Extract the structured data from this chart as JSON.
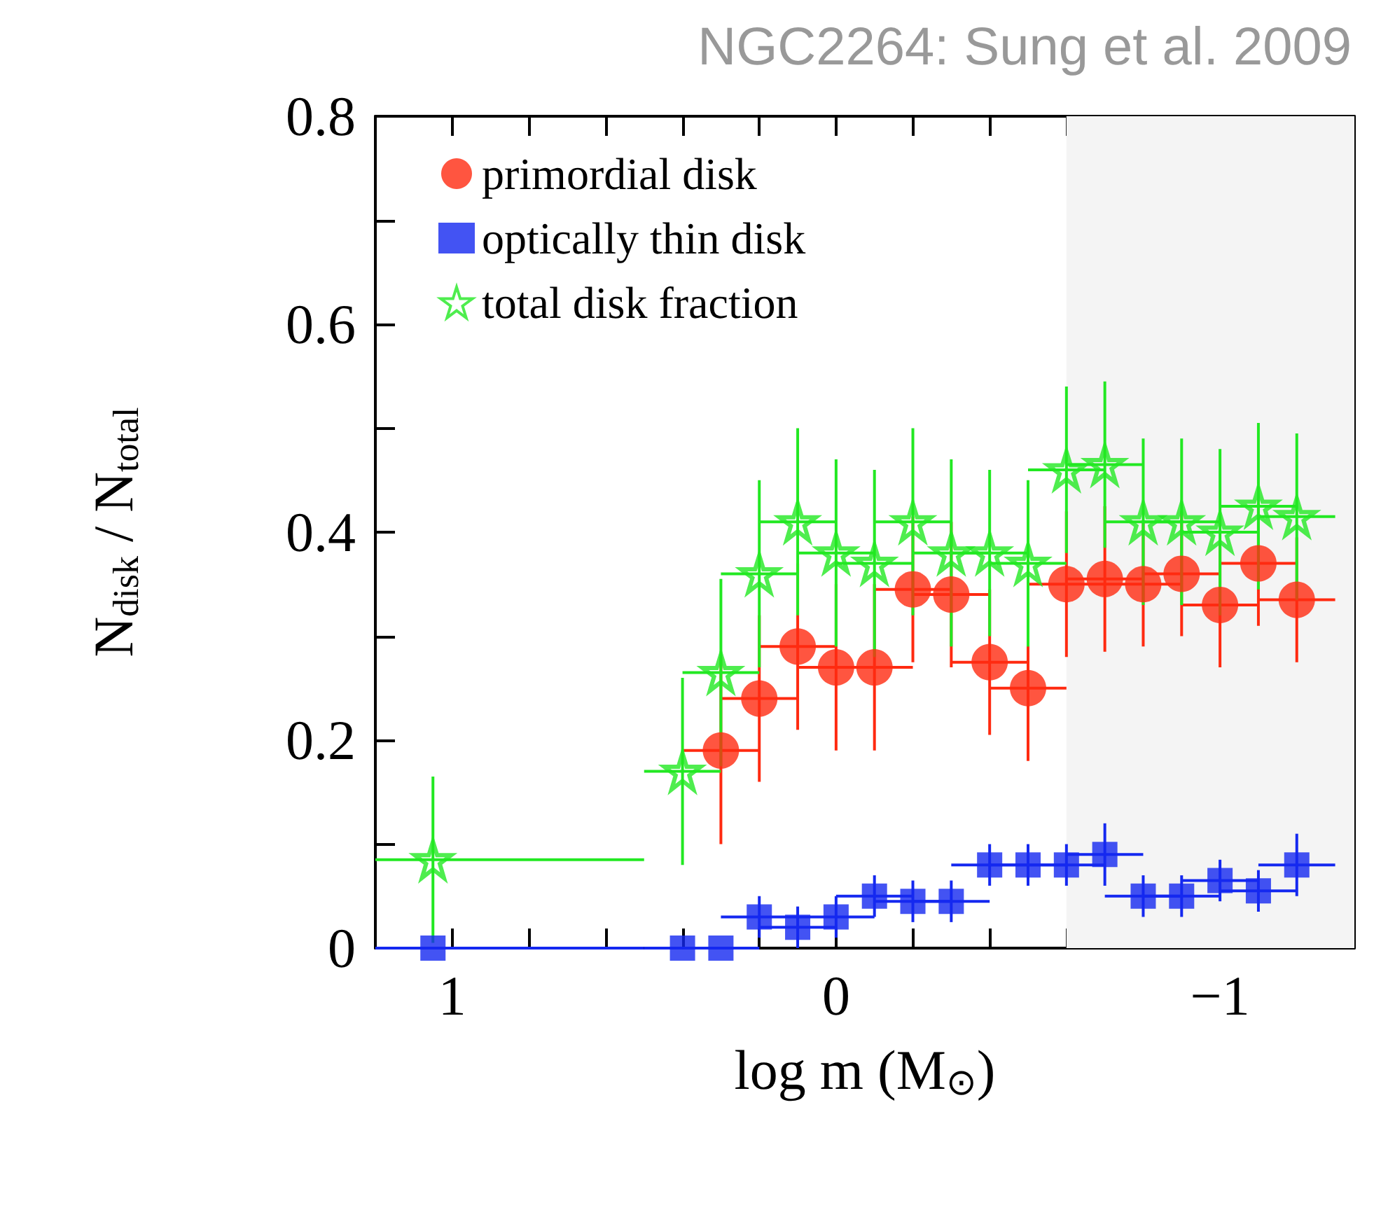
{
  "chart_data": {
    "type": "scatter",
    "title": "NGC2264: Sung et al. 2009",
    "xlabel": "log m (M$_{⊙}$)",
    "ylabel": "N$_{disk}$ / N$_{total}$",
    "x": [
      1.05,
      0.4,
      0.3,
      0.2,
      0.1,
      0,
      -0.1,
      -0.2,
      -0.3,
      -0.4,
      -0.5,
      -0.6,
      -0.7,
      -0.8,
      -0.9,
      -1.0,
      -1.1,
      -1.2
    ],
    "series": [
      {
        "name": "primordial disk",
        "color": "#ff2a10",
        "marker": "circle",
        "values": [
          null,
          null,
          0.19,
          0.24,
          0.29,
          0.27,
          0.27,
          0.345,
          0.34,
          0.275,
          0.25,
          0.35,
          0.355,
          0.35,
          0.36,
          0.33,
          0.37,
          0.335
        ],
        "errors": [
          null,
          null,
          0.09,
          0.08,
          0.08,
          0.08,
          0.08,
          0.07,
          0.07,
          0.07,
          0.07,
          0.07,
          0.07,
          0.06,
          0.06,
          0.06,
          0.06,
          0.06
        ],
        "xerrors": [
          null,
          null,
          0.1,
          0.1,
          0.1,
          0.1,
          0.1,
          0.1,
          0.1,
          0.1,
          0.1,
          0.1,
          0.1,
          0.1,
          0.1,
          0.1,
          0.1,
          0.1
        ]
      },
      {
        "name": "optically thin disk",
        "color": "#1428f0",
        "marker": "square",
        "values": [
          0,
          0,
          0,
          0.03,
          0.02,
          0.03,
          0.05,
          0.045,
          0.045,
          0.08,
          0.08,
          0.08,
          0.09,
          0.05,
          0.05,
          0.065,
          0.055,
          0.08
        ],
        "errors": [
          null,
          null,
          null,
          0.02,
          0.02,
          0.02,
          0.02,
          0.02,
          0.02,
          0.02,
          0.02,
          0.02,
          0.03,
          0.02,
          0.02,
          0.02,
          0.02,
          0.03
        ],
        "xerrors": [
          [
            0.5,
            1.2
          ],
          0.1,
          0.1,
          0.1,
          0.1,
          0.1,
          0.1,
          0.1,
          0.1,
          0.1,
          0.1,
          0.1,
          0.1,
          0.1,
          0.1,
          0.1,
          0.1,
          0.1
        ]
      },
      {
        "name": "total disk fraction",
        "color": "#22e822",
        "marker": "star",
        "values": [
          0.085,
          0.17,
          0.265,
          0.36,
          0.41,
          0.38,
          0.37,
          0.41,
          0.38,
          0.38,
          0.37,
          0.46,
          0.465,
          0.41,
          0.41,
          0.4,
          0.425,
          0.415
        ],
        "errors": [
          0.08,
          0.09,
          0.09,
          0.09,
          0.09,
          0.09,
          0.09,
          0.09,
          0.09,
          0.08,
          0.08,
          0.08,
          0.08,
          0.08,
          0.08,
          0.08,
          0.08,
          0.08
        ],
        "xerrors": [
          [
            0.5,
            1.2
          ],
          0.1,
          0.1,
          0.1,
          0.1,
          0.1,
          0.1,
          0.1,
          0.1,
          0.1,
          0.1,
          0.1,
          0.1,
          0.1,
          0.1,
          0.1,
          0.1,
          0.1
        ]
      }
    ],
    "xlim": [
      1.2,
      -1.35
    ],
    "xticks": [
      {
        "value": 1,
        "label": "1"
      },
      {
        "value": 0.8,
        "label": null
      },
      {
        "value": 0.6,
        "label": null
      },
      {
        "value": 0.4,
        "label": null
      },
      {
        "value": 0.2,
        "label": null
      },
      {
        "value": 0,
        "label": "0"
      },
      {
        "value": -0.2,
        "label": null
      },
      {
        "value": -0.4,
        "label": null
      },
      {
        "value": -0.6,
        "label": null
      },
      {
        "value": -0.8,
        "label": null
      },
      {
        "value": -1,
        "label": "−1"
      },
      {
        "value": -1.2,
        "label": null
      }
    ],
    "ylim": [
      0,
      0.8
    ],
    "yticks": [
      0,
      {
        "value": 0.1,
        "label": null
      },
      0.2,
      {
        "value": 0.3,
        "label": null
      },
      0.4,
      {
        "value": 0.5,
        "label": null
      },
      0.6,
      {
        "value": 0.7,
        "label": null
      },
      0.8
    ],
    "bands": [
      {
        "axis": "x",
        "from": -0.6,
        "to": -1.35
      }
    ],
    "legend": "top left",
    "grid": false
  }
}
